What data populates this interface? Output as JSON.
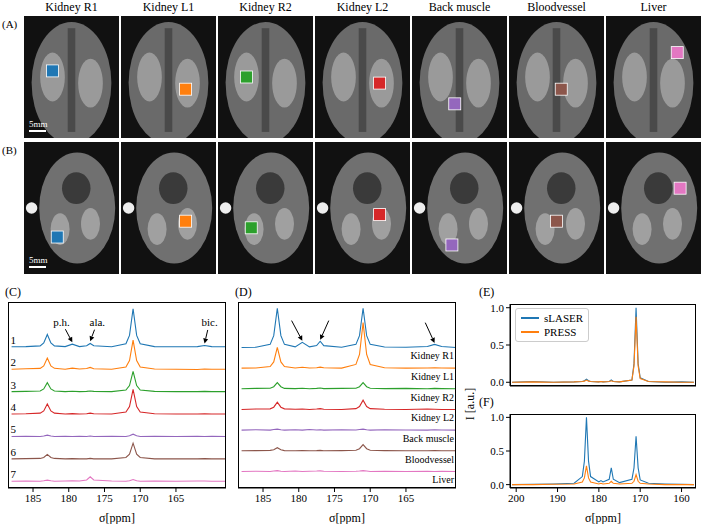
{
  "images": {
    "A": {
      "panel_label": "(A)",
      "scale_bar": "5mm"
    },
    "B": {
      "panel_label": "(B)",
      "scale_bar": "5mm"
    },
    "columns": [
      {
        "title": "Kidney R1",
        "color": "#1f77b4"
      },
      {
        "title": "Kidney L1",
        "color": "#ff7f0e"
      },
      {
        "title": "Kidney R2",
        "color": "#2ca02c"
      },
      {
        "title": "Kidney L2",
        "color": "#d62728"
      },
      {
        "title": "Back muscle",
        "color": "#9467bd"
      },
      {
        "title": "Bloodvessel",
        "color": "#8c564b"
      },
      {
        "title": "Liver",
        "color": "#e377c2"
      }
    ]
  },
  "chart_data": [
    {
      "panel_label": "(C)",
      "type": "line",
      "xlabel": "σ[ppm]",
      "tick_labels": "x",
      "xlim": [
        188.5,
        158
      ],
      "xticks": [
        185,
        180,
        175,
        170,
        165
      ],
      "ylim": [
        -0.3,
        8.0
      ],
      "x": [
        188,
        186,
        184,
        183.5,
        183,
        182.5,
        182,
        180.5,
        179.5,
        178.5,
        177.5,
        177,
        176.5,
        174,
        172,
        171.5,
        171,
        170.5,
        170,
        168,
        165,
        162,
        161,
        160,
        158
      ],
      "series": [
        {
          "name": "1",
          "color": "#1f77b4",
          "values": [
            6.0,
            6.01,
            6.04,
            6.17,
            6.55,
            6.17,
            6.04,
            6.01,
            6.12,
            6.01,
            6.05,
            6.15,
            6.05,
            6.0,
            6.14,
            6.51,
            7.7,
            6.51,
            6.14,
            6.01,
            6.0,
            6.01,
            6.06,
            6.01,
            6.0
          ]
        },
        {
          "name": "2",
          "color": "#ff7f0e",
          "values": [
            5.0,
            5.02,
            5.04,
            5.15,
            5.5,
            5.15,
            5.04,
            5.0,
            5.05,
            5.01,
            5.03,
            5.08,
            5.02,
            5.0,
            5.1,
            5.39,
            6.3,
            5.39,
            5.1,
            5.01,
            5.0,
            4.99,
            5.01,
            5.0,
            5.0
          ]
        },
        {
          "name": "3",
          "color": "#2ca02c",
          "values": [
            4.0,
            4.01,
            4.03,
            4.12,
            4.4,
            4.12,
            4.03,
            4.0,
            4.02,
            4.0,
            4.01,
            4.03,
            4.01,
            4.0,
            4.07,
            4.27,
            4.9,
            4.27,
            4.07,
            4.01,
            4.0,
            4.0,
            4.01,
            4.0,
            4.0
          ]
        },
        {
          "name": "4",
          "color": "#d62728",
          "values": [
            3.0,
            3.01,
            3.04,
            3.14,
            3.45,
            3.14,
            3.04,
            3.0,
            3.02,
            3.0,
            3.01,
            3.04,
            3.01,
            3.0,
            3.09,
            3.33,
            4.1,
            3.33,
            3.09,
            3.01,
            3.0,
            3.0,
            3.01,
            3.0,
            3.0
          ]
        },
        {
          "name": "5",
          "color": "#9467bd",
          "values": [
            2.0,
            2.01,
            2.0,
            2.02,
            2.06,
            2.02,
            2.0,
            2.01,
            2.0,
            2.01,
            2.0,
            2.02,
            2.0,
            2.01,
            2.0,
            2.03,
            2.1,
            2.03,
            2.0,
            2.01,
            2.0,
            2.01,
            2.0,
            2.01,
            2.0
          ]
        },
        {
          "name": "6",
          "color": "#8c564b",
          "values": [
            1.0,
            1.01,
            1.02,
            1.06,
            1.2,
            1.06,
            1.02,
            1.0,
            1.01,
            1.0,
            1.0,
            1.02,
            1.0,
            1.0,
            1.06,
            1.21,
            1.7,
            1.21,
            1.06,
            1.0,
            1.0,
            1.0,
            1.01,
            1.0,
            1.0
          ]
        },
        {
          "name": "7",
          "color": "#e377c2",
          "values": [
            0.0,
            0.01,
            0.0,
            0.02,
            0.05,
            0.02,
            0.0,
            0.01,
            0.02,
            0.01,
            0.06,
            0.2,
            0.06,
            0.01,
            0.0,
            0.02,
            0.08,
            0.02,
            0.0,
            0.01,
            0.0,
            0.01,
            0.01,
            0.0,
            0.0
          ]
        }
      ],
      "annotations": [
        {
          "text": "p.h.",
          "x": 179.5,
          "y": 6.2,
          "from_x": 181,
          "from_y": 7.1
        },
        {
          "text": "ala.",
          "x": 177,
          "y": 6.25,
          "from_x": 176,
          "from_y": 7.1
        },
        {
          "text": "bic.",
          "x": 161,
          "y": 6.15,
          "from_x": 160.3,
          "from_y": 7.1
        }
      ]
    },
    {
      "panel_label": "(D)",
      "type": "line",
      "xlabel": "σ[ppm]",
      "tick_labels": "x",
      "xlim": [
        188.5,
        158
      ],
      "xticks": [
        185,
        180,
        175,
        170,
        165
      ],
      "ylim": [
        -0.8,
        8.2
      ],
      "x": [
        188,
        186,
        184,
        183.5,
        183,
        182.5,
        182,
        180.5,
        179.5,
        178.5,
        177.5,
        177,
        176.5,
        174,
        172,
        171.5,
        171,
        170.5,
        170,
        168,
        165,
        162,
        161,
        160,
        158
      ],
      "series": [
        {
          "name": "Kidney R1",
          "color": "#1f77b4",
          "values": [
            6.0,
            6.01,
            6.15,
            6.57,
            7.9,
            6.57,
            6.15,
            6.03,
            6.25,
            6.03,
            6.09,
            6.3,
            6.09,
            6.01,
            6.15,
            6.57,
            7.9,
            6.57,
            6.15,
            6.02,
            6.01,
            6.05,
            6.15,
            6.05,
            6.0
          ]
        },
        {
          "name": "Kidney L1",
          "color": "#ff7f0e",
          "values": [
            5.0,
            5.01,
            5.08,
            5.3,
            6.0,
            5.3,
            5.08,
            5.01,
            5.04,
            5.01,
            5.02,
            5.05,
            5.02,
            5.0,
            5.18,
            5.66,
            7.2,
            5.66,
            5.18,
            5.02,
            5.0,
            5.01,
            5.02,
            5.01,
            5.0
          ]
        },
        {
          "name": "Kidney R2",
          "color": "#2ca02c",
          "values": [
            4.0,
            4.02,
            4.03,
            4.1,
            4.3,
            4.1,
            4.02,
            4.01,
            4.03,
            4.0,
            4.02,
            4.04,
            4.01,
            4.02,
            4.03,
            4.1,
            4.3,
            4.1,
            4.03,
            4.01,
            4.02,
            4.0,
            4.02,
            4.01,
            4.0
          ]
        },
        {
          "name": "Kidney L2",
          "color": "#d62728",
          "values": [
            3.0,
            3.02,
            3.03,
            3.11,
            3.35,
            3.11,
            3.03,
            3.01,
            3.02,
            3.0,
            3.02,
            3.04,
            3.01,
            3.0,
            3.04,
            3.14,
            3.45,
            3.14,
            3.04,
            3.01,
            3.0,
            3.02,
            3.01,
            3.0,
            3.0
          ]
        },
        {
          "name": "Back muscle",
          "color": "#9467bd",
          "values": [
            2.0,
            2.02,
            2.0,
            2.03,
            2.05,
            2.02,
            2.0,
            2.02,
            2.0,
            2.03,
            2.01,
            2.02,
            2.0,
            2.02,
            2.01,
            2.03,
            2.05,
            2.02,
            2.0,
            2.02,
            2.01,
            2.0,
            2.02,
            2.01,
            2.0
          ]
        },
        {
          "name": "Bloodvessel",
          "color": "#8c564b",
          "values": [
            1.0,
            1.01,
            1.02,
            1.05,
            1.15,
            1.05,
            1.01,
            1.0,
            1.01,
            1.0,
            1.01,
            1.02,
            1.0,
            1.01,
            1.03,
            1.1,
            1.3,
            1.1,
            1.03,
            1.01,
            1.0,
            1.0,
            1.01,
            1.0,
            1.0
          ]
        },
        {
          "name": "Liver",
          "color": "#e377c2",
          "values": [
            0.0,
            0.01,
            0.0,
            0.02,
            0.04,
            0.01,
            0.0,
            0.02,
            0.0,
            0.01,
            0.02,
            0.03,
            0.01,
            0.0,
            0.01,
            0.02,
            0.04,
            0.02,
            0.0,
            0.01,
            0.0,
            0.01,
            0.0,
            0.01,
            0.0
          ]
        }
      ],
      "annotations": [
        {
          "x": 179.5,
          "y": 6.32,
          "from_x": 181,
          "from_y": 7.3
        },
        {
          "x": 177,
          "y": 6.37,
          "from_x": 175.8,
          "from_y": 7.3
        },
        {
          "x": 161,
          "y": 6.22,
          "from_x": 162.3,
          "from_y": 7.2
        }
      ]
    },
    {
      "panel_label": "(E)",
      "type": "line",
      "ylabel": "I [a.u.]",
      "tick_labels": "y",
      "legend": "upper left",
      "xlim": [
        201.5,
        156.5
      ],
      "xticks": [
        200,
        190,
        180,
        170,
        160
      ],
      "ylim": [
        -0.05,
        1.05
      ],
      "yticks": [
        {
          "value": 0,
          "label": "0.0"
        },
        {
          "value": 0.5,
          "label": "0.5"
        },
        {
          "value": 1,
          "label": "1.0"
        }
      ],
      "x": [
        201,
        196,
        191,
        186,
        184,
        183.5,
        183,
        182.5,
        182,
        180,
        179.5,
        179,
        177.5,
        177,
        176.5,
        175,
        172,
        171.5,
        171,
        170.5,
        170,
        168,
        164,
        160,
        157
      ],
      "series": [
        {
          "name": "sLASER",
          "color": "#1f77b4",
          "values": [
            0,
            0.01,
            0,
            0.005,
            0.01,
            0.02,
            0.04,
            0.02,
            0.01,
            0.005,
            0.01,
            0.005,
            0.01,
            0.03,
            0.01,
            0.005,
            0.03,
            0.25,
            1.0,
            0.25,
            0.06,
            0.01,
            0,
            0.005,
            0
          ]
        },
        {
          "name": "PRESS",
          "color": "#ff7f0e",
          "values": [
            0,
            0.005,
            0,
            0.005,
            0.01,
            0.015,
            0.03,
            0.015,
            0.01,
            0.005,
            0.01,
            0.005,
            0.01,
            0.02,
            0.01,
            0.005,
            0.03,
            0.22,
            0.88,
            0.22,
            0.05,
            0.01,
            0.005,
            0,
            0
          ]
        }
      ]
    },
    {
      "panel_label": "(F)",
      "type": "line",
      "xlabel": "σ[ppm]",
      "xlim": [
        201.5,
        156.5
      ],
      "xticks": [
        200,
        190,
        180,
        170,
        160
      ],
      "ylim": [
        -0.05,
        1.05
      ],
      "yticks": [
        {
          "value": 0,
          "label": "0.0"
        },
        {
          "value": 0.5,
          "label": "0.5"
        },
        {
          "value": 1,
          "label": "1.0"
        }
      ],
      "x": [
        201,
        196,
        191,
        186,
        184,
        183.5,
        183,
        182.5,
        182,
        180,
        179.5,
        179,
        177.5,
        177,
        176.5,
        175,
        172,
        171.5,
        171,
        170.5,
        170,
        168,
        164,
        160,
        157
      ],
      "series": [
        {
          "name": "sLASER",
          "color": "#1f77b4",
          "values": [
            0,
            0.005,
            0.01,
            0.02,
            0.12,
            0.35,
            1.0,
            0.35,
            0.12,
            0.04,
            0.06,
            0.04,
            0.08,
            0.25,
            0.08,
            0.03,
            0.08,
            0.25,
            0.72,
            0.25,
            0.07,
            0.02,
            0.01,
            0.005,
            0
          ]
        },
        {
          "name": "PRESS",
          "color": "#ff7f0e",
          "values": [
            0,
            0,
            0.005,
            0.01,
            0.04,
            0.1,
            0.28,
            0.1,
            0.04,
            0.01,
            0.02,
            0.01,
            0.02,
            0.05,
            0.02,
            0.01,
            0.02,
            0.05,
            0.15,
            0.05,
            0.02,
            0.01,
            0,
            0,
            0
          ]
        }
      ]
    }
  ]
}
